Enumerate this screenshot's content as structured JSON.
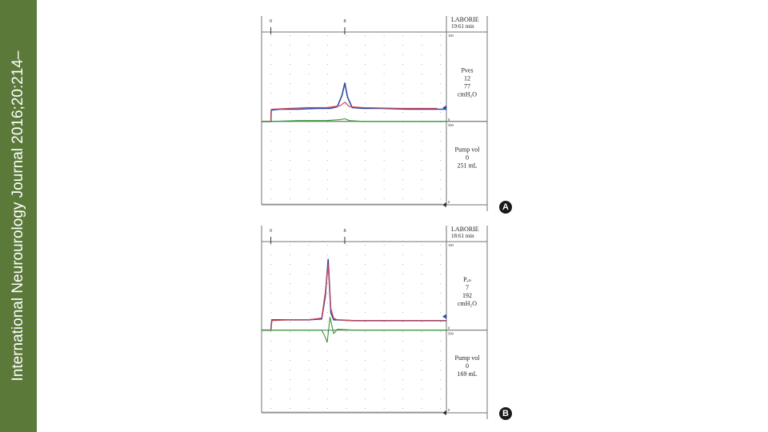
{
  "sidebar": {
    "citation": "International Neurourology Journal 2016;20:214–",
    "background": "#5b7a3a"
  },
  "colors": {
    "pves_line": "#3047a8",
    "pabd_line": "#d2454b",
    "pdet_line": "#2f9a2f",
    "vol_line": "#2f9a2f",
    "grid": "#9aa0a0",
    "axis": "#6f7676"
  },
  "panels": [
    {
      "id": "A",
      "letter": "A",
      "brand": "LABORIE",
      "time": "19:61 min",
      "scale_top": "100",
      "scale_mid": "0",
      "scale_low_top": "500",
      "scale_low_bottom": "0",
      "x_ticks": [
        "0",
        "8"
      ],
      "upper_label": [
        "Pves",
        "12",
        "77",
        "cmH₂O"
      ],
      "lower_label": [
        "Pump vol",
        "0",
        "251 mL"
      ]
    },
    {
      "id": "B",
      "letter": "B",
      "brand": "LABORIE",
      "time": "18:61 min",
      "scale_top": "100",
      "scale_mid": "0",
      "scale_low_top": "500",
      "scale_low_bottom": "0",
      "x_ticks": [
        "0",
        "8"
      ],
      "upper_label": [
        "Pₐₙ",
        "7",
        "192",
        "cmH₂O"
      ],
      "lower_label": [
        "Pump vol",
        "0",
        "169 mL"
      ]
    }
  ],
  "chart_data": [
    {
      "type": "line",
      "panel": "A",
      "xlim": [
        -1,
        19
      ],
      "upper_ylim": [
        0,
        100
      ],
      "series": [
        {
          "color": "#3047a8",
          "x": [
            -1,
            0,
            0.05,
            1,
            3,
            5,
            6.5,
            7.2,
            7.7,
            8,
            8.3,
            8.8,
            10,
            12,
            15,
            18,
            19
          ],
          "y": [
            0,
            0,
            13,
            14,
            14,
            15,
            15,
            17,
            30,
            44,
            28,
            16,
            15,
            15,
            14,
            14,
            14
          ]
        },
        {
          "color": "#d2454b",
          "x": [
            -1,
            0,
            0.05,
            2,
            4,
            6,
            7.5,
            8,
            8.5,
            10,
            14,
            18
          ],
          "y": [
            0,
            0,
            14,
            15,
            16,
            16,
            18,
            22,
            17,
            16,
            15,
            15
          ]
        },
        {
          "color": "#2f9a2f",
          "x": [
            -1,
            0,
            3,
            6,
            7.5,
            8,
            8.5,
            10,
            14,
            19
          ],
          "y": [
            0,
            0,
            1,
            1,
            2,
            3,
            1,
            0,
            0,
            0
          ]
        }
      ]
    },
    {
      "type": "line",
      "panel": "B",
      "xlim": [
        -1,
        19
      ],
      "upper_ylim": [
        0,
        100
      ],
      "series": [
        {
          "color": "#3047a8",
          "x": [
            -1,
            0,
            0.1,
            2,
            4,
            5.5,
            5.9,
            6.2,
            6.5,
            6.8,
            7.2,
            9,
            12,
            15,
            19
          ],
          "y": [
            0,
            0,
            12,
            12,
            12,
            13,
            40,
            82,
            20,
            12,
            12,
            11,
            11,
            11,
            11
          ]
        },
        {
          "color": "#d2454b",
          "x": [
            -1,
            0,
            0.1,
            2,
            4,
            5.5,
            5.9,
            6.2,
            6.5,
            6.8,
            7.2,
            9,
            12,
            19
          ],
          "y": [
            0,
            0,
            11,
            12,
            12,
            14,
            45,
            76,
            25,
            14,
            12,
            11,
            11,
            11
          ]
        },
        {
          "color": "#2f9a2f",
          "x": [
            -1,
            0,
            3,
            5.5,
            5.8,
            6.1,
            6.4,
            6.8,
            7.2,
            9,
            19
          ],
          "y": [
            0,
            0,
            0,
            0,
            -6,
            -14,
            15,
            -4,
            1,
            0,
            0
          ]
        }
      ]
    }
  ]
}
